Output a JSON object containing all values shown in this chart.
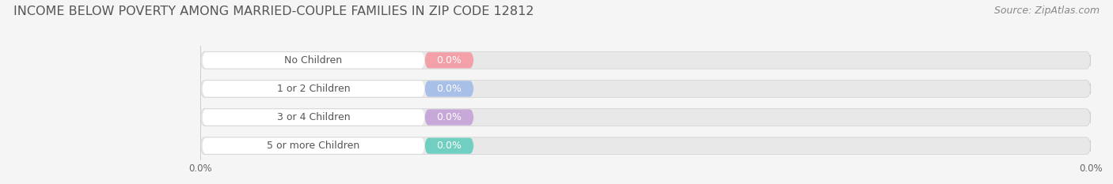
{
  "title": "INCOME BELOW POVERTY AMONG MARRIED-COUPLE FAMILIES IN ZIP CODE 12812",
  "source": "Source: ZipAtlas.com",
  "categories": [
    "No Children",
    "1 or 2 Children",
    "3 or 4 Children",
    "5 or more Children"
  ],
  "values": [
    0.0,
    0.0,
    0.0,
    0.0
  ],
  "bar_colors": [
    "#f4a0a8",
    "#a8bfe8",
    "#c8a8d8",
    "#70cfc0"
  ],
  "background_color": "#f5f5f5",
  "bar_bg_color": "#e8e8e8",
  "title_fontsize": 11.5,
  "source_fontsize": 9,
  "label_fontsize": 9,
  "figsize": [
    14.06,
    2.33
  ],
  "dpi": 100
}
